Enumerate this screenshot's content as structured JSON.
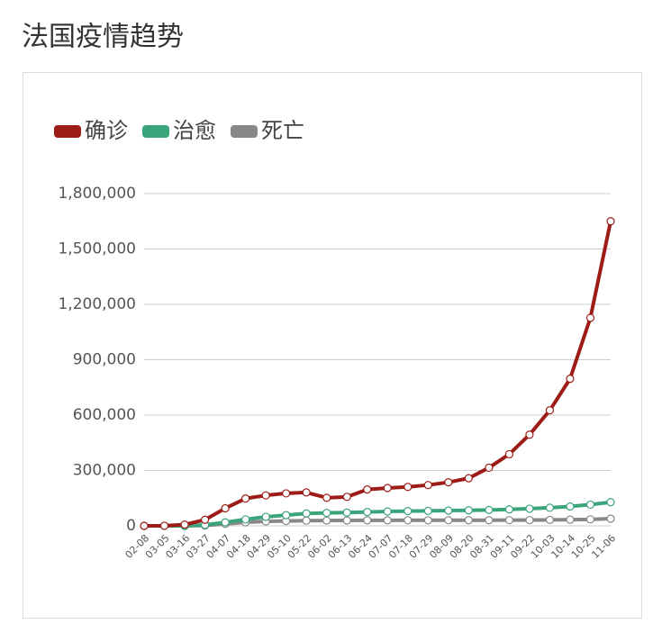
{
  "chart_data": {
    "type": "line",
    "title": "法国疫情趋势",
    "categories": [
      "02-08",
      "03-05",
      "03-16",
      "03-27",
      "04-07",
      "04-18",
      "04-29",
      "05-10",
      "05-22",
      "06-02",
      "06-13",
      "06-24",
      "07-07",
      "07-18",
      "07-29",
      "08-09",
      "08-20",
      "08-31",
      "09-11",
      "09-22",
      "10-03",
      "10-14",
      "10-25",
      "11-06"
    ],
    "series": [
      {
        "name": "确诊",
        "color": "#9e1c17",
        "values": [
          11,
          400,
          6600,
          33000,
          95000,
          148000,
          165000,
          176000,
          181000,
          152000,
          157000,
          197000,
          205000,
          211000,
          221000,
          236000,
          258000,
          315000,
          388000,
          494000,
          626000,
          797000,
          1127000,
          1650000
        ]
      },
      {
        "name": "治愈",
        "color": "#3aa57a",
        "values": [
          0,
          12,
          12,
          5700,
          19000,
          35000,
          49000,
          58000,
          67000,
          70000,
          72000,
          75000,
          78000,
          80000,
          81000,
          83000,
          84000,
          86000,
          89000,
          93000,
          98000,
          105000,
          115000,
          128000
        ]
      },
      {
        "name": "死亡",
        "color": "#888888",
        "values": [
          0,
          2,
          148,
          1995,
          10300,
          19300,
          24100,
          26300,
          28300,
          28900,
          29400,
          29800,
          30000,
          30200,
          30200,
          30400,
          30500,
          30600,
          30900,
          31400,
          32200,
          33600,
          35000,
          39000
        ]
      }
    ],
    "ylim": [
      0,
      1800000
    ],
    "yticks": [
      {
        "value": 0,
        "label": "0"
      },
      {
        "value": 300000,
        "label": "300,000"
      },
      {
        "value": 600000,
        "label": "600,000"
      },
      {
        "value": 900000,
        "label": "900,000"
      },
      {
        "value": 1200000,
        "label": "1,200,000"
      },
      {
        "value": 1500000,
        "label": "1,500,000"
      },
      {
        "value": 1800000,
        "label": "1,800,000"
      }
    ],
    "grid": true
  }
}
